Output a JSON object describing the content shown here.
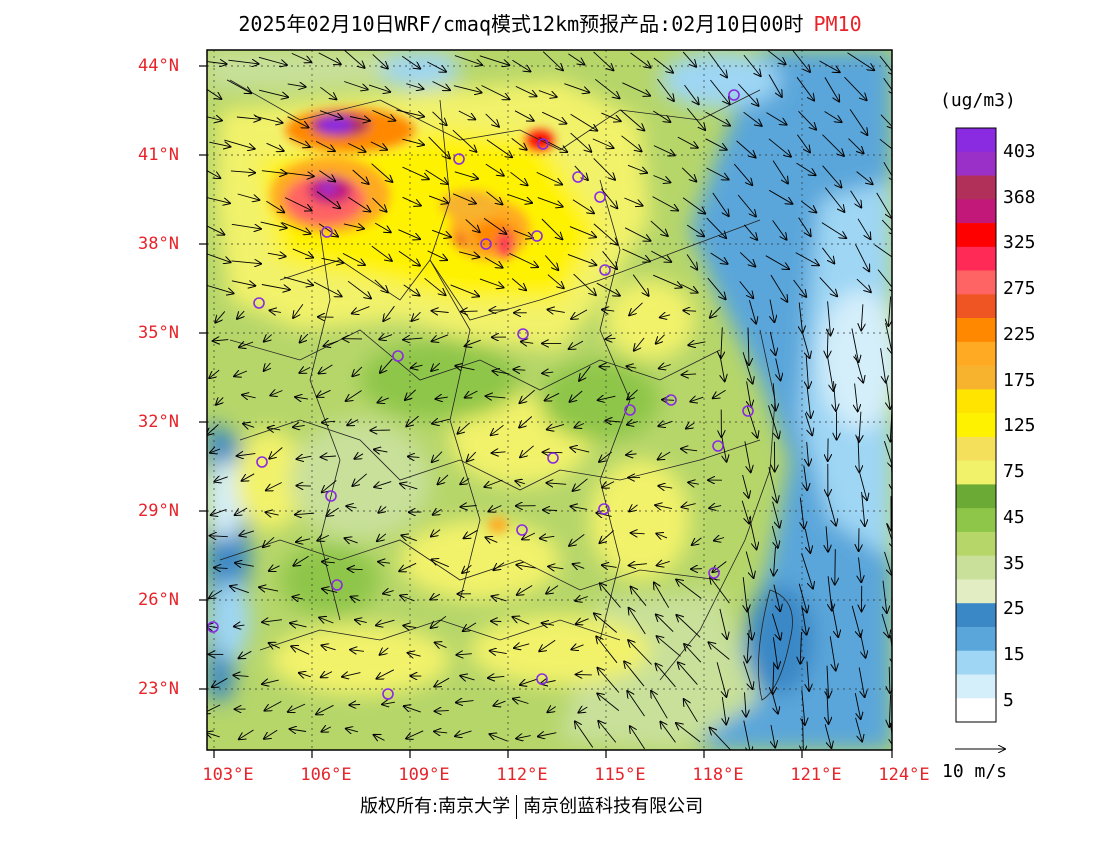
{
  "title": {
    "main": "2025年02月10日WRF/cmaq模式12km预报产品:02月10日00时",
    "pollutant": "PM10"
  },
  "axes": {
    "latitude_labels": [
      "44°N",
      "41°N",
      "38°N",
      "35°N",
      "32°N",
      "29°N",
      "26°N",
      "23°N"
    ],
    "longitude_labels": [
      "103°E",
      "106°E",
      "109°E",
      "112°E",
      "115°E",
      "118°E",
      "121°E",
      "124°E"
    ]
  },
  "colorbar": {
    "unit": "(ug/m3)",
    "labels": [
      "403",
      "368",
      "325",
      "275",
      "225",
      "175",
      "125",
      "75",
      "45",
      "35",
      "25",
      "15",
      "5"
    ],
    "colors": [
      "#8a2be2",
      "#9b30c9",
      "#b0305a",
      "#c2187a",
      "#ff0000",
      "#ff2a55",
      "#ff6464",
      "#ee5522",
      "#ff8800",
      "#ffaa22",
      "#f7b22e",
      "#ffe400",
      "#fff200",
      "#f4e05a",
      "#f2f26a",
      "#6aaa35",
      "#8ec64a",
      "#b6d66a",
      "#c8e09a",
      "#e2edc4",
      "#3a88c6",
      "#5aa6da",
      "#9ed6f4",
      "#d4eefa",
      "#ffffff"
    ]
  },
  "wind_reference": {
    "label": "10 m/s"
  },
  "copyright": {
    "left": "版权所有:南京大学",
    "right": "南京创蓝科技有限公司"
  }
}
